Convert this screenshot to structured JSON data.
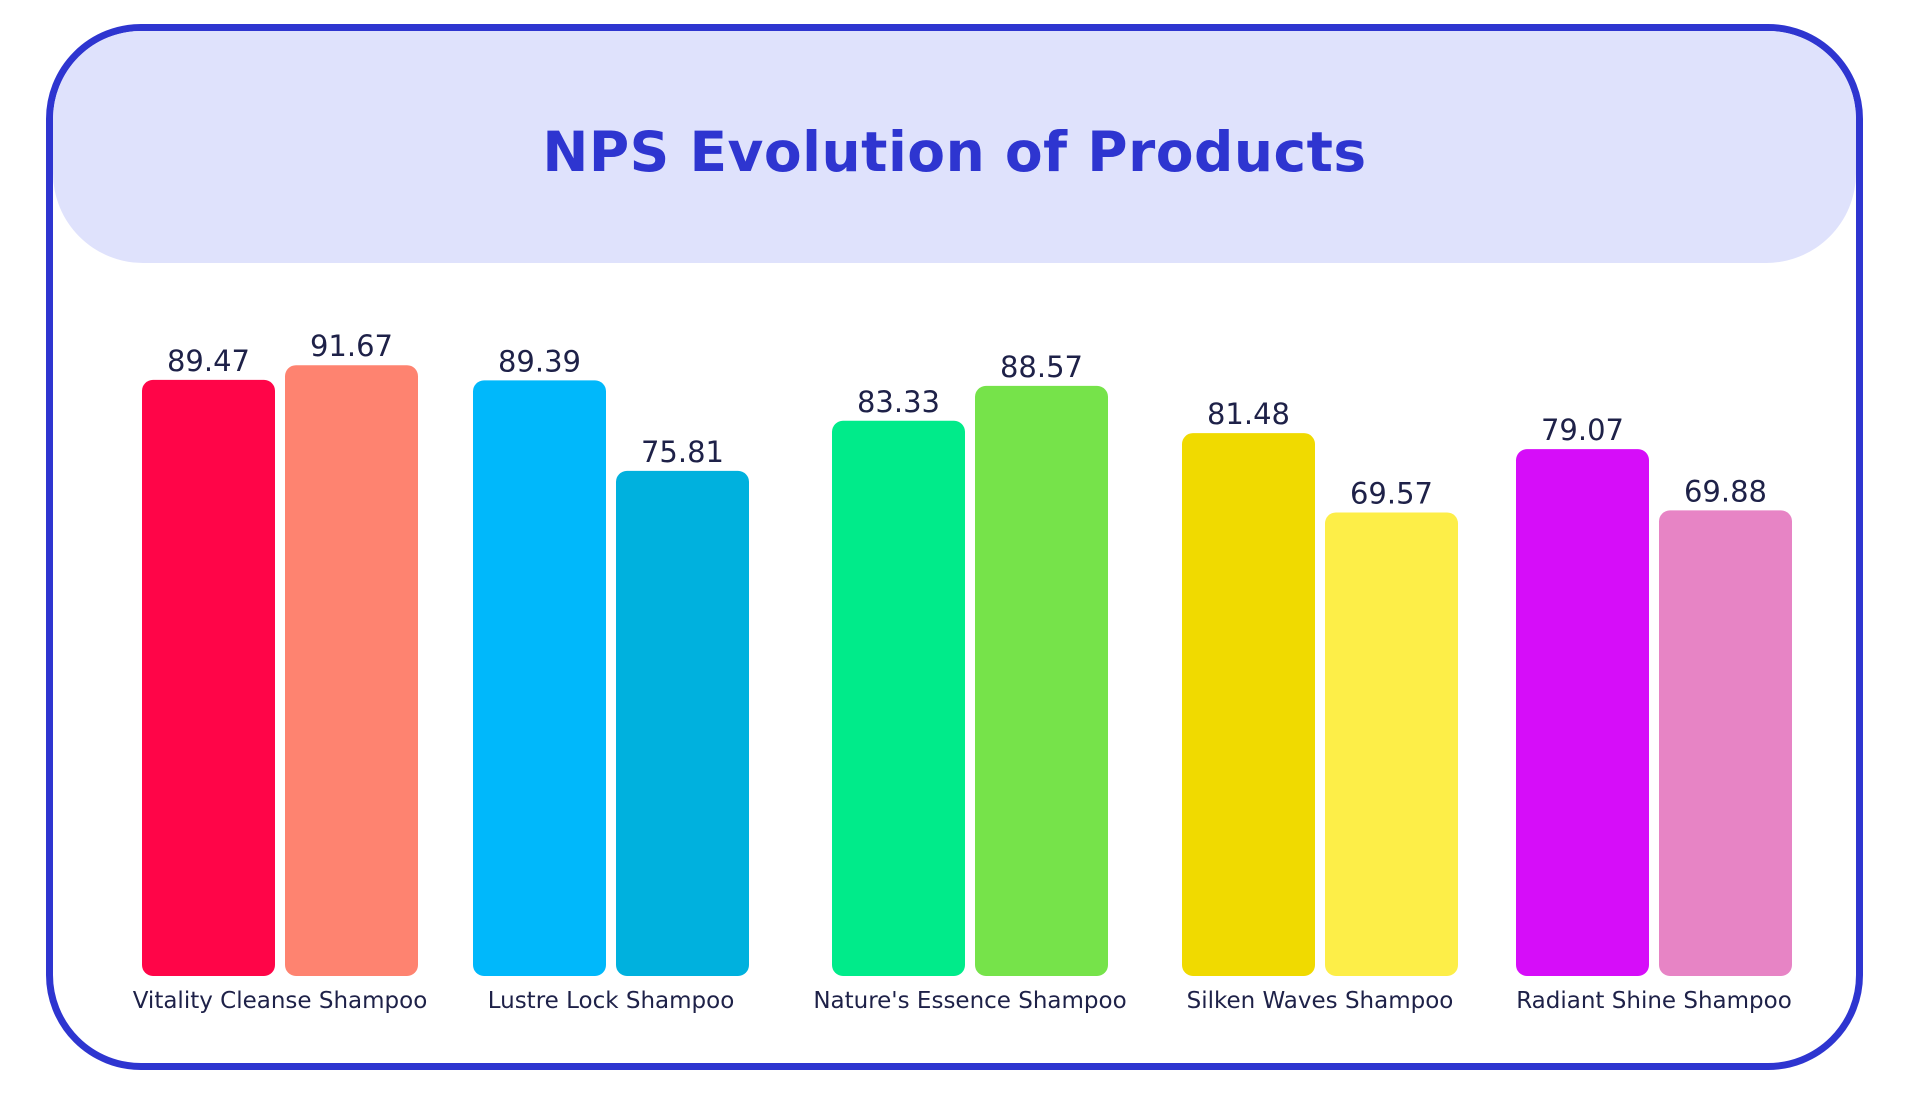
{
  "chart_data": {
    "type": "bar",
    "title": "NPS Evolution of Products",
    "xlabel": "",
    "ylabel": "",
    "grid": false,
    "legend": "none",
    "ylim": [
      0,
      95
    ],
    "categories": [
      "Vitality Cleanse Shampoo",
      "Lustre Lock Shampoo",
      "Nature's Essence Shampoo",
      "Silken Waves Shampoo",
      "Radiant Shine Shampoo"
    ],
    "series": [
      {
        "values": [
          89.47,
          89.39,
          83.33,
          81.48,
          79.07
        ],
        "colors": [
          "#ff0548",
          "#00b8fb",
          "#00eb8a",
          "#f0da00",
          "#d60df9"
        ]
      },
      {
        "values": [
          91.67,
          75.81,
          88.57,
          69.57,
          69.88
        ],
        "colors": [
          "#fe8370",
          "#00b1de",
          "#76e34a",
          "#fdee48",
          "#e784c5"
        ]
      }
    ]
  }
}
